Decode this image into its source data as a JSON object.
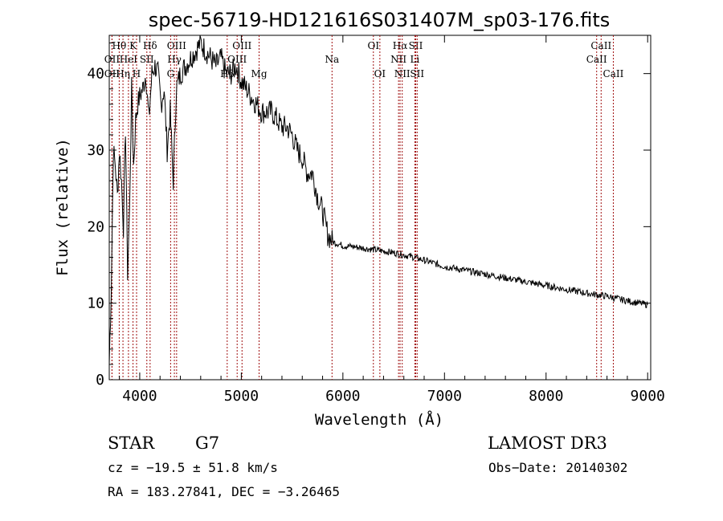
{
  "chart_data": {
    "type": "line",
    "title": "spec-56719-HD121616S031407M_sp03-176.fits",
    "xlabel": "Wavelength (Å)",
    "ylabel": "Flux (relative)",
    "xlim": [
      3700,
      9030
    ],
    "ylim": [
      0,
      45
    ],
    "xticks": [
      4000,
      5000,
      6000,
      7000,
      8000,
      9000
    ],
    "yticks": [
      0,
      10,
      20,
      30,
      40
    ],
    "grid": false,
    "line_color": "#000000",
    "marker_color": "#a01010",
    "series": [
      {
        "name": "spectrum",
        "x": [
          3700,
          3720,
          3740,
          3760,
          3780,
          3800,
          3820,
          3840,
          3860,
          3880,
          3900,
          3920,
          3940,
          3960,
          3980,
          4000,
          4030,
          4060,
          4090,
          4120,
          4150,
          4180,
          4210,
          4240,
          4270,
          4300,
          4330,
          4360,
          4400,
          4450,
          4500,
          4550,
          4600,
          4650,
          4700,
          4750,
          4800,
          4850,
          4900,
          4950,
          5000,
          5050,
          5100,
          5150,
          5200,
          5250,
          5300,
          5350,
          5400,
          5450,
          5500,
          5550,
          5600,
          5650,
          5700,
          5750,
          5800,
          5850,
          5900,
          5950,
          6000,
          6100,
          6200,
          6300,
          6400,
          6500,
          6600,
          6700,
          6800,
          6900,
          7000,
          7200,
          7400,
          7600,
          7800,
          8000,
          8200,
          8400,
          8600,
          8800,
          9000
        ],
        "y": [
          2,
          12,
          30,
          28,
          24,
          30,
          26,
          20,
          33,
          14,
          22,
          38,
          28,
          34,
          36,
          37,
          38,
          40,
          34,
          40,
          41,
          40,
          36,
          38,
          30,
          35,
          26,
          38,
          40,
          41,
          42,
          43,
          44,
          43,
          42,
          41,
          42,
          40,
          40,
          41,
          39,
          38,
          37,
          36,
          35,
          35,
          35,
          34,
          33,
          33,
          32,
          30,
          29,
          27,
          27,
          24,
          22,
          19,
          18,
          17.8,
          17.5,
          17.4,
          17.2,
          17.0,
          16.8,
          16.6,
          16.3,
          16.0,
          15.6,
          15.2,
          14.8,
          14.3,
          13.8,
          13.3,
          12.8,
          12.3,
          11.8,
          11.3,
          10.9,
          10.3,
          9.8
        ]
      }
    ],
    "line_markers": [
      {
        "label": "Hθ",
        "x": 3798,
        "row": 1
      },
      {
        "label": "OII",
        "x": 3727,
        "row": 2
      },
      {
        "label": "OII",
        "x": 3727,
        "row": 3
      },
      {
        "label": "K",
        "x": 3934,
        "row": 1
      },
      {
        "label": "HeI",
        "x": 3889,
        "row": 2
      },
      {
        "label": "Hη",
        "x": 3835,
        "row": 3
      },
      {
        "label": "Hδ",
        "x": 4102,
        "row": 1
      },
      {
        "label": "SII",
        "x": 4070,
        "row": 2
      },
      {
        "label": "H",
        "x": 3969,
        "row": 3
      },
      {
        "label": "OIII",
        "x": 4363,
        "row": 1
      },
      {
        "label": "Hγ",
        "x": 4341,
        "row": 2
      },
      {
        "label": "G",
        "x": 4304,
        "row": 3
      },
      {
        "label": "OIII",
        "x": 5007,
        "row": 1
      },
      {
        "label": "OIII",
        "x": 4959,
        "row": 2
      },
      {
        "label": "Hβ",
        "x": 4861,
        "row": 3
      },
      {
        "label": "Mg",
        "x": 5175,
        "row": 3
      },
      {
        "label": "Na",
        "x": 5893,
        "row": 2
      },
      {
        "label": "OI",
        "x": 6300,
        "row": 1
      },
      {
        "label": "OI",
        "x": 6364,
        "row": 3
      },
      {
        "label": "Hα",
        "x": 6563,
        "row": 1
      },
      {
        "label": "NII",
        "x": 6548,
        "row": 2
      },
      {
        "label": "NII",
        "x": 6584,
        "row": 3
      },
      {
        "label": "SII",
        "x": 6717,
        "row": 1
      },
      {
        "label": "Li",
        "x": 6708,
        "row": 2
      },
      {
        "label": "SII",
        "x": 6731,
        "row": 3
      },
      {
        "label": "CaII",
        "x": 8542,
        "row": 1
      },
      {
        "label": "CaII",
        "x": 8498,
        "row": 2
      },
      {
        "label": "CaII",
        "x": 8662,
        "row": 3
      }
    ]
  },
  "info": {
    "object_type": "STAR",
    "subclass": "G7",
    "survey": "LAMOST DR3",
    "cz": "cz = −19.5 ± 51.8 km/s",
    "obs_date": "Obs−Date: 20140302",
    "coords": "RA = 183.27841, DEC =  −3.26465"
  }
}
